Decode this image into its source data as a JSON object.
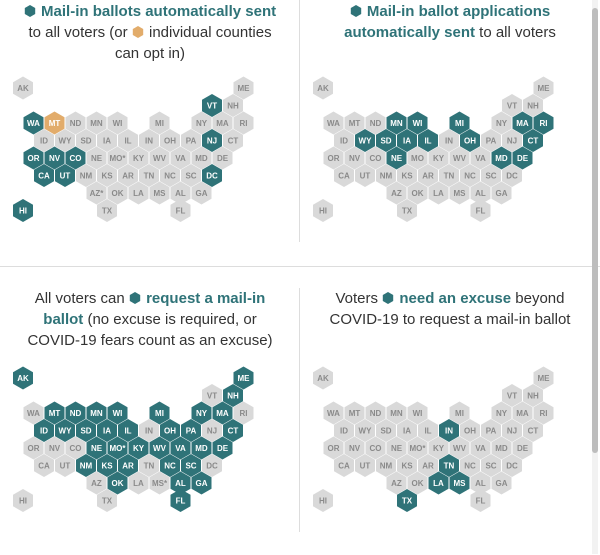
{
  "colors": {
    "highlight": "#2f7378",
    "opt_in": "#e2ac6b",
    "inactive": "#d9d9d9"
  },
  "panels": [
    {
      "title_lines": [
        [
          "hex",
          {
            "b": "Mail-in ballots automatically sent"
          }
        ],
        [
          "to all voters (or ",
          "hexo",
          "individual counties"
        ],
        [
          "can opt in)"
        ]
      ]
    },
    {
      "title_lines": [
        [
          "hex",
          {
            "b": "Mail-in ballot applications"
          }
        ],
        [
          {
            "b": "automatically sent"
          },
          " to all voters"
        ]
      ]
    },
    {
      "title_lines": [
        [
          "All voters can ",
          "hex",
          {
            "b": "request a mail-in"
          }
        ],
        [
          {
            "b": "ballot"
          },
          " (no excuse is required, or"
        ],
        [
          "COVID-19 fears count as an excuse)"
        ]
      ]
    },
    {
      "title_lines": [
        [
          "Voters ",
          "hex",
          {
            "b": "need an excuse"
          },
          " beyond"
        ],
        [
          "COVID-19 to request a mail-in ballot"
        ]
      ]
    }
  ],
  "chart_data": [
    {
      "type": "hex-tile-map",
      "title": "Mail-in ballots automatically sent to all voters (or individual counties can opt in)",
      "highlighted_states": [
        "VT",
        "WA",
        "NJ",
        "OR",
        "NV",
        "CO",
        "DC",
        "CA",
        "UT",
        "HI"
      ],
      "opt_in_states": [
        "MT"
      ]
    },
    {
      "type": "hex-tile-map",
      "title": "Mail-in ballot applications automatically sent to all voters",
      "highlighted_states": [
        "MN",
        "WI",
        "MI",
        "MA",
        "RI",
        "WY",
        "SD",
        "IA",
        "IL",
        "OH",
        "CT",
        "NE",
        "MD",
        "DE"
      ],
      "opt_in_states": []
    },
    {
      "type": "hex-tile-map",
      "title": "All voters can request a mail-in ballot (no excuse is required, or COVID-19 fears count as an excuse)",
      "highlighted_states": [
        "AK",
        "ME",
        "NH",
        "MT",
        "ND",
        "MN",
        "WI",
        "MI",
        "NY",
        "MA",
        "ID",
        "WY",
        "SD",
        "IA",
        "IL",
        "OH",
        "PA",
        "CT",
        "NE",
        "MO*",
        "KY",
        "WV",
        "VA",
        "MD",
        "DE",
        "NM",
        "KS",
        "AR",
        "NC",
        "SC",
        "AZ",
        "OK",
        "AL",
        "GA",
        "FL"
      ],
      "opt_in_states": []
    },
    {
      "type": "hex-tile-map",
      "title": "Voters need an excuse beyond COVID-19 to request a mail-in ballot",
      "highlighted_states": [
        "IN",
        "TN",
        "LA",
        "MS",
        "TX"
      ],
      "opt_in_states": []
    }
  ],
  "states": [
    {
      "id": "AK",
      "c": 0,
      "r": 0
    },
    {
      "id": "ME",
      "c": 10.5,
      "r": 0
    },
    {
      "id": "VT",
      "c": 9,
      "r": 1
    },
    {
      "id": "NH",
      "c": 10,
      "r": 1
    },
    {
      "id": "WA",
      "c": 0.5,
      "r": 2
    },
    {
      "id": "MT",
      "c": 1.5,
      "r": 2
    },
    {
      "id": "ND",
      "c": 2.5,
      "r": 2
    },
    {
      "id": "MN",
      "c": 3.5,
      "r": 2
    },
    {
      "id": "WI",
      "c": 4.5,
      "r": 2
    },
    {
      "id": "MI",
      "c": 6.5,
      "r": 2
    },
    {
      "id": "NY",
      "c": 8.5,
      "r": 2
    },
    {
      "id": "MA",
      "c": 9.5,
      "r": 2
    },
    {
      "id": "RI",
      "c": 10.5,
      "r": 2
    },
    {
      "id": "ID",
      "c": 1,
      "r": 3
    },
    {
      "id": "WY",
      "c": 2,
      "r": 3
    },
    {
      "id": "SD",
      "c": 3,
      "r": 3
    },
    {
      "id": "IA",
      "c": 4,
      "r": 3
    },
    {
      "id": "IL",
      "c": 5,
      "r": 3
    },
    {
      "id": "IN",
      "c": 6,
      "r": 3
    },
    {
      "id": "OH",
      "c": 7,
      "r": 3
    },
    {
      "id": "PA",
      "c": 8,
      "r": 3
    },
    {
      "id": "NJ",
      "c": 9,
      "r": 3
    },
    {
      "id": "CT",
      "c": 10,
      "r": 3
    },
    {
      "id": "OR",
      "c": 0.5,
      "r": 4
    },
    {
      "id": "NV",
      "c": 1.5,
      "r": 4
    },
    {
      "id": "CO",
      "c": 2.5,
      "r": 4
    },
    {
      "id": "NE",
      "c": 3.5,
      "r": 4
    },
    {
      "id": "MO*",
      "c": 4.5,
      "r": 4
    },
    {
      "id": "KY",
      "c": 5.5,
      "r": 4
    },
    {
      "id": "WV",
      "c": 6.5,
      "r": 4
    },
    {
      "id": "VA",
      "c": 7.5,
      "r": 4
    },
    {
      "id": "MD",
      "c": 8.5,
      "r": 4
    },
    {
      "id": "DE",
      "c": 9.5,
      "r": 4
    },
    {
      "id": "CA",
      "c": 1,
      "r": 5
    },
    {
      "id": "UT",
      "c": 2,
      "r": 5
    },
    {
      "id": "NM",
      "c": 3,
      "r": 5
    },
    {
      "id": "KS",
      "c": 4,
      "r": 5
    },
    {
      "id": "AR",
      "c": 5,
      "r": 5
    },
    {
      "id": "TN",
      "c": 6,
      "r": 5
    },
    {
      "id": "NC",
      "c": 7,
      "r": 5
    },
    {
      "id": "SC",
      "c": 8,
      "r": 5
    },
    {
      "id": "DC",
      "c": 9,
      "r": 5
    },
    {
      "id": "AZ*",
      "c": 3.5,
      "r": 6
    },
    {
      "id": "OK",
      "c": 4.5,
      "r": 6
    },
    {
      "id": "LA",
      "c": 5.5,
      "r": 6
    },
    {
      "id": "MS",
      "c": 6.5,
      "r": 6
    },
    {
      "id": "AL",
      "c": 7.5,
      "r": 6
    },
    {
      "id": "GA",
      "c": 8.5,
      "r": 6
    },
    {
      "id": "HI",
      "c": 0,
      "r": 7
    },
    {
      "id": "TX",
      "c": 4,
      "r": 7
    },
    {
      "id": "FL",
      "c": 7.5,
      "r": 7
    }
  ],
  "panel_label_overrides": [
    {},
    {
      "AZ*": "AZ",
      "MO*": "MO"
    },
    {
      "AZ*": "AZ",
      "MS": "MS*"
    },
    {
      "AZ*": "AZ"
    }
  ]
}
